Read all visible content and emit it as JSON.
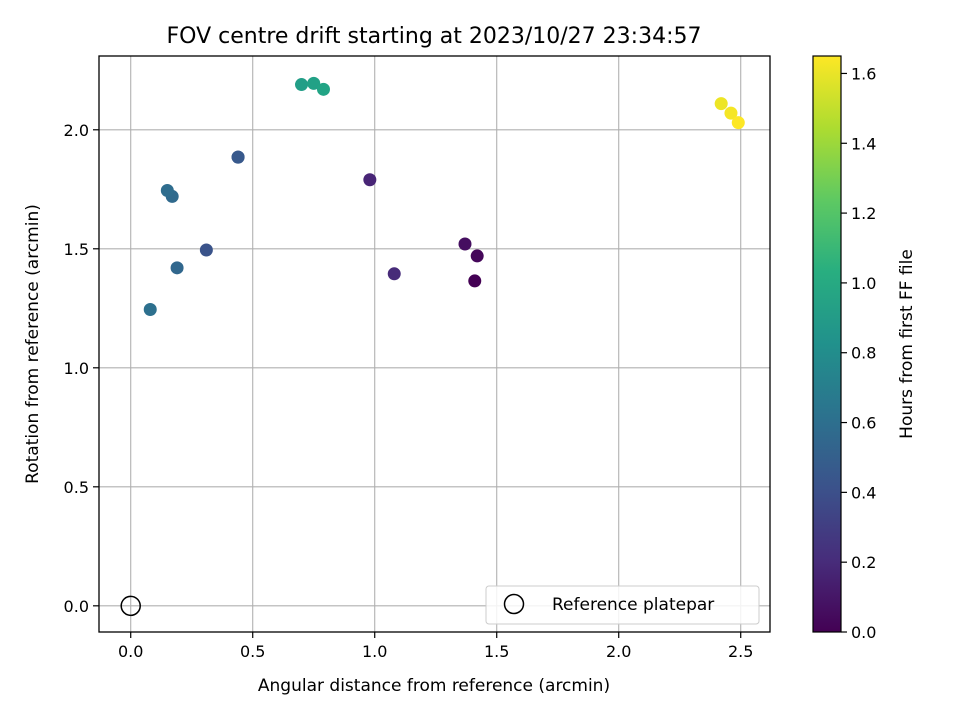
{
  "chart_data": {
    "type": "scatter",
    "title": "FOV centre drift starting at 2023/10/27 23:34:57",
    "xlabel": "Angular distance from reference (arcmin)",
    "ylabel": "Rotation from reference (arcmin)",
    "xlim": [
      -0.13,
      2.62
    ],
    "ylim": [
      -0.11,
      2.31
    ],
    "x_ticks": [
      "0.0",
      "0.5",
      "1.0",
      "1.5",
      "2.0",
      "2.5"
    ],
    "x_tick_values": [
      0,
      0.5,
      1.0,
      1.5,
      2.0,
      2.5
    ],
    "y_ticks": [
      "0.0",
      "0.5",
      "1.0",
      "1.5",
      "2.0"
    ],
    "y_tick_values": [
      0,
      0.5,
      1.0,
      1.5,
      2.0
    ],
    "grid": true,
    "legend": {
      "position": "lower-right",
      "label": "Reference platepar"
    },
    "reference_point": {
      "x": 0.0,
      "y": 0.0
    },
    "colorbar": {
      "label": "Hours from first FF file",
      "colormap": "viridis",
      "range": [
        0.0,
        1.65
      ],
      "ticks": [
        "0.0",
        "0.2",
        "0.4",
        "0.6",
        "0.8",
        "1.0",
        "1.2",
        "1.4",
        "1.6"
      ],
      "tick_values": [
        0.0,
        0.2,
        0.4,
        0.6,
        0.8,
        1.0,
        1.2,
        1.4,
        1.6
      ]
    },
    "points": [
      {
        "x": 1.41,
        "y": 1.365,
        "c": 0.0
      },
      {
        "x": 1.42,
        "y": 1.47,
        "c": 0.03
      },
      {
        "x": 1.37,
        "y": 1.52,
        "c": 0.06
      },
      {
        "x": 0.98,
        "y": 1.79,
        "c": 0.17
      },
      {
        "x": 1.08,
        "y": 1.395,
        "c": 0.2
      },
      {
        "x": 0.31,
        "y": 1.495,
        "c": 0.42
      },
      {
        "x": 0.44,
        "y": 1.885,
        "c": 0.44
      },
      {
        "x": 0.44,
        "y": 1.885,
        "c": 0.46
      },
      {
        "x": 0.19,
        "y": 1.42,
        "c": 0.55
      },
      {
        "x": 0.17,
        "y": 1.72,
        "c": 0.57
      },
      {
        "x": 0.15,
        "y": 1.745,
        "c": 0.59
      },
      {
        "x": 0.08,
        "y": 1.245,
        "c": 0.61
      },
      {
        "x": 0.7,
        "y": 2.19,
        "c": 0.92
      },
      {
        "x": 0.75,
        "y": 2.195,
        "c": 0.94
      },
      {
        "x": 0.79,
        "y": 2.17,
        "c": 0.96
      },
      {
        "x": 2.42,
        "y": 2.11,
        "c": 1.61
      },
      {
        "x": 2.46,
        "y": 2.07,
        "c": 1.63
      },
      {
        "x": 2.49,
        "y": 2.03,
        "c": 1.65
      }
    ]
  }
}
